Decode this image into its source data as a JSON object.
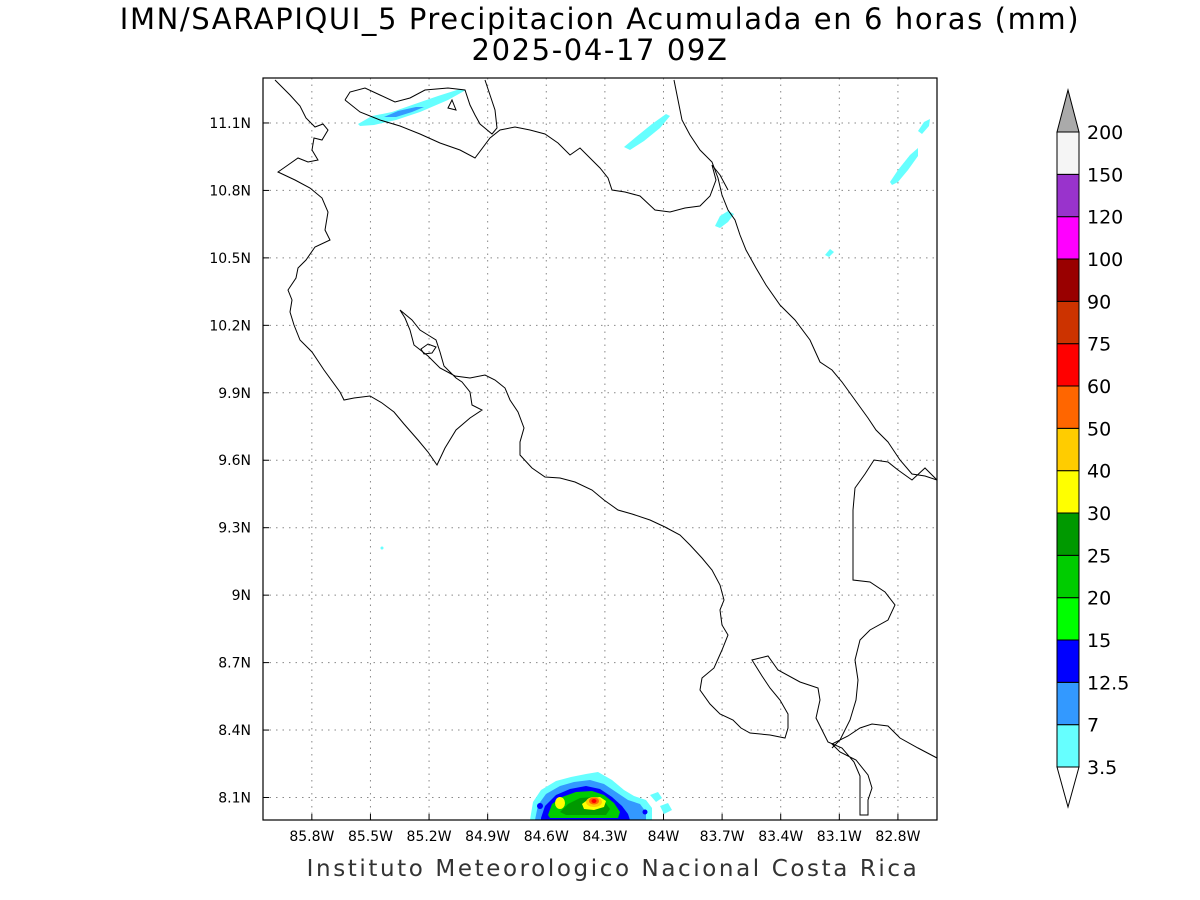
{
  "title": {
    "line1": "IMN/SARAPIQUI_5 Precipitacion Acumulada en 6 horas (mm)",
    "line2": "2025-04-17 09Z"
  },
  "footer": "Instituto Meteorologico Nacional Costa Rica",
  "map": {
    "lon_range": [
      -86.05,
      -82.6
    ],
    "lat_range": [
      8.0,
      11.3
    ],
    "lon_ticks": [
      {
        "value": -85.8,
        "label": "85.8W"
      },
      {
        "value": -85.5,
        "label": "85.5W"
      },
      {
        "value": -85.2,
        "label": "85.2W"
      },
      {
        "value": -84.9,
        "label": "84.9W"
      },
      {
        "value": -84.6,
        "label": "84.6W"
      },
      {
        "value": -84.3,
        "label": "84.3W"
      },
      {
        "value": -84.0,
        "label": "84W"
      },
      {
        "value": -83.7,
        "label": "83.7W"
      },
      {
        "value": -83.4,
        "label": "83.4W"
      },
      {
        "value": -83.1,
        "label": "83.1W"
      },
      {
        "value": -82.8,
        "label": "82.8W"
      }
    ],
    "lat_ticks": [
      {
        "value": 11.1,
        "label": "11.1N"
      },
      {
        "value": 10.8,
        "label": "10.8N"
      },
      {
        "value": 10.5,
        "label": "10.5N"
      },
      {
        "value": 10.2,
        "label": "10.2N"
      },
      {
        "value": 9.9,
        "label": "9.9N"
      },
      {
        "value": 9.6,
        "label": "9.6N"
      },
      {
        "value": 9.3,
        "label": "9.3N"
      },
      {
        "value": 9.0,
        "label": "9N"
      },
      {
        "value": 8.7,
        "label": "8.7N"
      },
      {
        "value": 8.4,
        "label": "8.4N"
      },
      {
        "value": 8.1,
        "label": "8.1N"
      }
    ],
    "grid": true
  },
  "colorbar": {
    "colors": [
      "#66ffff",
      "#3399ff",
      "#0000ff",
      "#00ff00",
      "#00cc00",
      "#009900",
      "#ffff00",
      "#ffcc00",
      "#ff6600",
      "#ff0000",
      "#cc3300",
      "#990000",
      "#ff00ff",
      "#9933cc",
      "#f5f5f5",
      "#aaaaaa"
    ],
    "labels": [
      "3.5",
      "7",
      "12.5",
      "15",
      "20",
      "25",
      "30",
      "40",
      "50",
      "60",
      "75",
      "90",
      "100",
      "120",
      "150",
      "200"
    ]
  },
  "chart_data": {
    "type": "heatmap",
    "title": "IMN/SARAPIQUI_5 Precipitacion Acumulada en 6 horas (mm)",
    "subtitle": "2025-04-17 09Z",
    "unit": "mm",
    "levels": [
      3.5,
      7,
      12.5,
      15,
      20,
      25,
      30,
      40,
      50,
      60,
      75,
      90,
      100,
      120,
      150,
      200
    ],
    "xlabel": "",
    "ylabel": "",
    "xlim": [
      -86.05,
      -82.6
    ],
    "ylim": [
      8.0,
      11.3
    ],
    "grid": true,
    "legend": "right"
  }
}
